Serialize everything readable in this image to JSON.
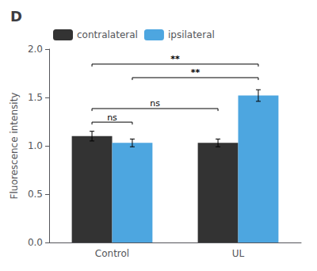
{
  "chart_data": {
    "type": "bar",
    "title": "D",
    "categories": [
      "Control",
      "UL"
    ],
    "series": [
      {
        "name": "contralateral",
        "color": "#333333",
        "values": [
          1.1,
          1.03
        ],
        "errors": [
          0.05,
          0.04
        ]
      },
      {
        "name": "ipsilateral",
        "color": "#4da6e0",
        "values": [
          1.03,
          1.52
        ],
        "errors": [
          0.04,
          0.06
        ]
      }
    ],
    "ylabel": "Fluorescence intensity",
    "ylim": [
      0.0,
      2.0
    ],
    "yticks": [
      {
        "value": 0.0,
        "label": "0.0"
      },
      0.5,
      {
        "value": 1.0,
        "label": "1.0"
      },
      1.5,
      {
        "value": 2.0,
        "label": "2.0"
      }
    ],
    "significance": [
      {
        "from": {
          "category": "Control",
          "series": "contralateral"
        },
        "to": {
          "category": "Control",
          "series": "ipsilateral"
        },
        "y": 1.22,
        "label": "ns"
      },
      {
        "from": {
          "category": "Control",
          "series": "contralateral"
        },
        "to": {
          "category": "UL",
          "series": "contralateral"
        },
        "y": 1.36,
        "label": "ns"
      },
      {
        "from": {
          "category": "Control",
          "series": "ipsilateral"
        },
        "to": {
          "category": "UL",
          "series": "ipsilateral"
        },
        "y": 1.68,
        "label": "**"
      },
      {
        "from": {
          "category": "Control",
          "series": "contralateral"
        },
        "to": {
          "category": "UL",
          "series": "ipsilateral"
        },
        "y": 1.82,
        "label": "**"
      }
    ],
    "legend": "upper left",
    "grid": false
  }
}
